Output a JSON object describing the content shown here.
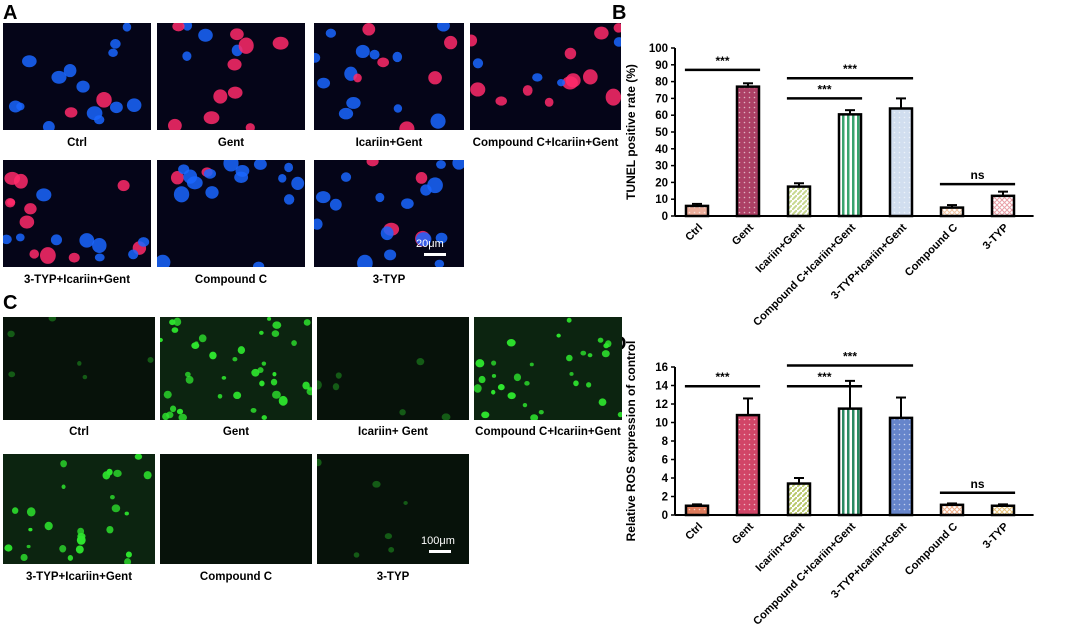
{
  "panels": {
    "A": {
      "label": "A",
      "captions": [
        "Ctrl",
        "Gent",
        "Icariin+Gent",
        "Compound C+Icariin+Gent",
        "3-TYP+Icariin+Gent",
        "Compound C",
        "3-TYP"
      ],
      "scale_bar": "20μm"
    },
    "C": {
      "label": "C",
      "captions": [
        "Ctrl",
        "Gent",
        "Icariin+ Gent",
        "Compound C+Icariin+Gent",
        "3-TYP+Icariin+Gent",
        "Compound C",
        "3-TYP"
      ],
      "scale_bar": "100μm"
    },
    "B": {
      "label": "B"
    },
    "D": {
      "label": "D"
    }
  },
  "colors": {
    "tunel_stain": "#ff2a6a",
    "dapi_stain": "#1a66ff",
    "ros_stain": "#2ee62e",
    "bar_outline": "#000000"
  },
  "chart_data": [
    {
      "id": "B",
      "type": "bar",
      "ylabel": "TUNEL positive rate (%)",
      "ylim": [
        0,
        100
      ],
      "yticks": [
        0,
        10,
        20,
        30,
        40,
        50,
        60,
        70,
        80,
        90,
        100
      ],
      "categories": [
        "Ctrl",
        "Gent",
        "Icariin+Gent",
        "Compound C+Icariin+Gent",
        "3-TYP+Icariin+Gent",
        "Compound C",
        "3-TYP"
      ],
      "values": [
        6,
        77,
        17.5,
        60.5,
        64,
        5,
        12
      ],
      "errors": [
        1.2,
        2,
        2,
        2.5,
        6,
        1.5,
        2.5
      ],
      "fills": [
        "#e9a08a",
        "#9e1f4a",
        "#c7d88f",
        "#3aa36e",
        "#c9d8ec",
        "#f3c7a4",
        "#e8a0a8"
      ],
      "significance": [
        {
          "from": 0,
          "to": 1,
          "label": "***"
        },
        {
          "from": 2,
          "to": 3,
          "label": "***"
        },
        {
          "from": 2,
          "to": 4,
          "label": "***"
        },
        {
          "from": 5,
          "to": 6,
          "label": "ns"
        }
      ]
    },
    {
      "id": "D",
      "type": "bar",
      "ylabel": "Relative ROS expression of control",
      "ylim": [
        0,
        16
      ],
      "yticks": [
        0,
        2,
        4,
        6,
        8,
        10,
        12,
        14,
        16
      ],
      "categories": [
        "Ctrl",
        "Gent",
        "Icariin+Gent",
        "Compound C+Icariin+Gent",
        "3-TYP+Icariin+Gent",
        "Compound C",
        "3-TYP"
      ],
      "values": [
        1,
        10.8,
        3.4,
        11.5,
        10.5,
        1.1,
        1
      ],
      "errors": [
        0.15,
        1.8,
        0.6,
        3,
        2.2,
        0.15,
        0.15
      ],
      "fills": [
        "#d8643e",
        "#c9244d",
        "#b9c86b",
        "#2b8a63",
        "#4b70c2",
        "#f2b08a",
        "#e8c47a"
      ],
      "significance": [
        {
          "from": 0,
          "to": 1,
          "label": "***"
        },
        {
          "from": 2,
          "to": 3,
          "label": "***"
        },
        {
          "from": 2,
          "to": 4,
          "label": "***"
        },
        {
          "from": 5,
          "to": 6,
          "label": "ns"
        }
      ]
    }
  ]
}
